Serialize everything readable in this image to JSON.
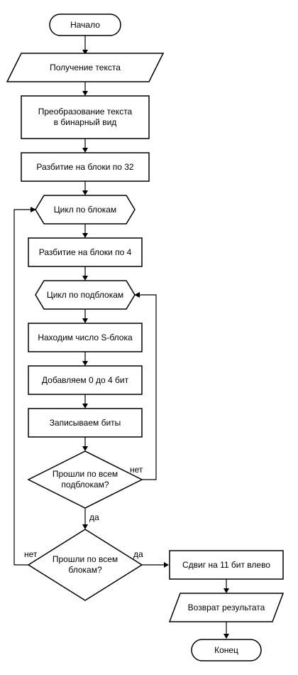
{
  "nodes": {
    "start": "Начало",
    "input": "Получение текста",
    "convert": [
      "Преобразование текста",
      "в бинарный вид"
    ],
    "split32": "Разбитие на блоки по 32",
    "loop_blocks": "Цикл по блокам",
    "split4": "Разбитие на блоки по 4",
    "loop_subblocks": "Цикл по подблокам",
    "find_sbox": "Находим число S-блока",
    "pad_bits": "Добавляем 0 до 4 бит",
    "write_bits": "Записываем биты",
    "check_subblocks": [
      "Прошли по всем",
      "подблокам?"
    ],
    "check_blocks": [
      "Прошли по всем",
      "блокам?"
    ],
    "shift": "Сдвиг на 11 бит влево",
    "output": "Возврат результата",
    "end": "Конец"
  },
  "edge_labels": {
    "sub_no": "нет",
    "sub_yes": "да",
    "blocks_no": "нет",
    "blocks_yes": "да"
  }
}
